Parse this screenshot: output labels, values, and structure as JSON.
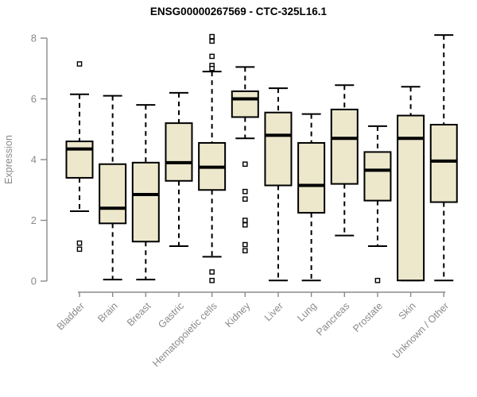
{
  "colors": {
    "box_fill": "#EDE8CC",
    "box_stroke": "#000000",
    "median": "#000000",
    "axis": "#8A8A8A",
    "title": "#000000",
    "background": "#FFFFFF",
    "outlier_fill": "#FFFFFF"
  },
  "chart_data": {
    "type": "boxplot",
    "title": "ENSG00000267569 - CTC-325L16.1",
    "ylabel": "Expression",
    "xlabel": "",
    "ylim": [
      0,
      8
    ],
    "yticks": [
      0,
      2,
      4,
      6,
      8
    ],
    "grid": false,
    "legend": false,
    "categories": [
      "Bladder",
      "Brain",
      "Breast",
      "Gastric",
      "Hematopoietic cells",
      "Kidney",
      "Liver",
      "Lung",
      "Pancreas",
      "Prostate",
      "Skin",
      "Unknown / Other"
    ],
    "series": [
      {
        "name": "Bladder",
        "whisker_low": 2.3,
        "q1": 3.4,
        "median": 4.35,
        "q3": 4.6,
        "whisker_high": 6.15,
        "outliers": [
          7.15,
          1.25,
          1.05
        ]
      },
      {
        "name": "Brain",
        "whisker_low": 0.05,
        "q1": 1.9,
        "median": 2.4,
        "q3": 3.85,
        "whisker_high": 6.1,
        "outliers": []
      },
      {
        "name": "Breast",
        "whisker_low": 0.05,
        "q1": 1.3,
        "median": 2.85,
        "q3": 3.9,
        "whisker_high": 5.8,
        "outliers": []
      },
      {
        "name": "Gastric",
        "whisker_low": 1.15,
        "q1": 3.3,
        "median": 3.9,
        "q3": 5.2,
        "whisker_high": 6.2,
        "outliers": []
      },
      {
        "name": "Hematopoietic cells",
        "whisker_low": 0.8,
        "q1": 3.0,
        "median": 3.75,
        "q3": 4.55,
        "whisker_high": 6.9,
        "outliers": [
          8.05,
          7.9,
          7.4,
          7.1,
          7.0,
          0.3,
          0.02
        ]
      },
      {
        "name": "Kidney",
        "whisker_low": 4.7,
        "q1": 5.4,
        "median": 6.0,
        "q3": 6.25,
        "whisker_high": 7.05,
        "outliers": [
          3.85,
          2.95,
          2.7,
          2.0,
          1.85,
          1.2,
          1.0
        ]
      },
      {
        "name": "Liver",
        "whisker_low": 0.02,
        "q1": 3.15,
        "median": 4.8,
        "q3": 5.55,
        "whisker_high": 6.35,
        "outliers": []
      },
      {
        "name": "Lung",
        "whisker_low": 0.02,
        "q1": 2.25,
        "median": 3.15,
        "q3": 4.55,
        "whisker_high": 5.5,
        "outliers": []
      },
      {
        "name": "Pancreas",
        "whisker_low": 1.5,
        "q1": 3.2,
        "median": 4.7,
        "q3": 5.65,
        "whisker_high": 6.45,
        "outliers": []
      },
      {
        "name": "Prostate",
        "whisker_low": 1.15,
        "q1": 2.65,
        "median": 3.65,
        "q3": 4.25,
        "whisker_high": 5.1,
        "outliers": [
          0.02
        ]
      },
      {
        "name": "Skin",
        "whisker_low": 0.02,
        "q1": 0.02,
        "median": 4.7,
        "q3": 5.45,
        "whisker_high": 6.4,
        "outliers": []
      },
      {
        "name": "Unknown / Other",
        "whisker_low": 0.02,
        "q1": 2.6,
        "median": 3.95,
        "q3": 5.15,
        "whisker_high": 8.1,
        "outliers": []
      }
    ]
  }
}
